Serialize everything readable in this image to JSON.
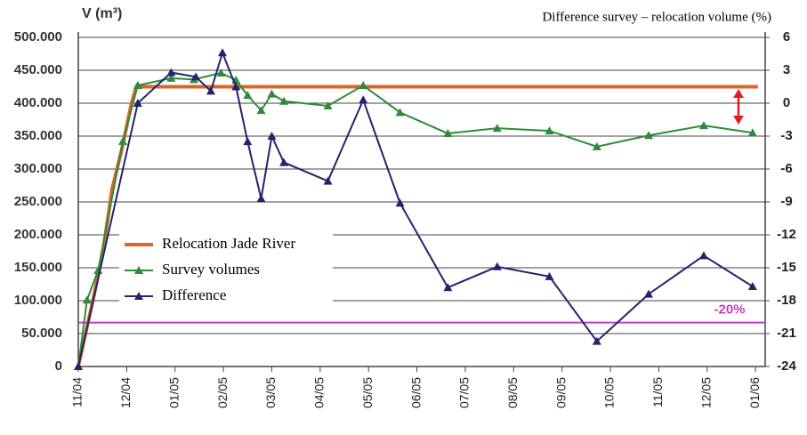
{
  "chart_data": {
    "type": "line",
    "y_label": "V (m³)",
    "y2_label": "Difference  survey  –  relocation volume  (%)",
    "xlim": [
      0,
      14.2
    ],
    "xticks": [
      {
        "value": 0,
        "label": "11/04"
      },
      {
        "value": 1,
        "label": "12/04"
      },
      {
        "value": 2,
        "label": "01/05"
      },
      {
        "value": 3,
        "label": "02/05"
      },
      {
        "value": 4,
        "label": "03/05"
      },
      {
        "value": 5,
        "label": "04/05"
      },
      {
        "value": 6,
        "label": "05/05"
      },
      {
        "value": 7,
        "label": "06/05"
      },
      {
        "value": 8,
        "label": "07/05"
      },
      {
        "value": 9,
        "label": "08/05"
      },
      {
        "value": 10,
        "label": "09/05"
      },
      {
        "value": 11,
        "label": "10/05"
      },
      {
        "value": 12,
        "label": "11/05"
      },
      {
        "value": 13,
        "label": "12/05"
      },
      {
        "value": 14,
        "label": "01/06"
      }
    ],
    "ylim": [
      0,
      500000
    ],
    "yticks": [
      0,
      {
        "value": 50000,
        "label": "50.000"
      },
      {
        "value": 100000,
        "label": "100.000"
      },
      {
        "value": 150000,
        "label": "150.000"
      },
      {
        "value": 200000,
        "label": "200.000"
      },
      {
        "value": 250000,
        "label": "250.000"
      },
      {
        "value": 300000,
        "label": "300.000"
      },
      {
        "value": 350000,
        "label": "350.000"
      },
      {
        "value": 400000,
        "label": "400.000"
      },
      {
        "value": 450000,
        "label": "450.000"
      },
      {
        "value": 500000,
        "label": "500.000"
      }
    ],
    "y2lim": [
      -24,
      6
    ],
    "y2ticks": [
      -24,
      -21,
      -18,
      -15,
      -12,
      -9,
      -6,
      -3,
      0,
      3,
      6
    ],
    "grid": true,
    "legend": "center left",
    "series": [
      {
        "name": "Relocation Jade River",
        "color": "#d9662a",
        "marker": "none",
        "x": [
          0,
          0.3,
          0.5,
          0.7,
          0.9,
          1.1,
          1.2,
          14.05
        ],
        "values": [
          0,
          100000,
          170000,
          270000,
          330000,
          400000,
          425000,
          425000
        ]
      },
      {
        "name": "Survey volumes",
        "color": "#2e8b3a",
        "marker": "triangle",
        "x": [
          0,
          0.18,
          0.41,
          0.92,
          1.23,
          1.92,
          2.39,
          2.95,
          3.26,
          3.5,
          3.78,
          4.0,
          4.25,
          5.16,
          5.89,
          6.65,
          7.64,
          8.66,
          9.74,
          10.72,
          11.79,
          12.93,
          13.94
        ],
        "values": [
          0,
          101000,
          146000,
          342000,
          427000,
          438000,
          436000,
          446000,
          435000,
          412000,
          389000,
          414000,
          403000,
          396000,
          427000,
          386000,
          354000,
          362000,
          358000,
          334000,
          351000,
          366000,
          355000
        ]
      },
      {
        "name": "Difference",
        "color": "#23236e",
        "marker": "triangle",
        "axis": "y2",
        "x": [
          0,
          1.23,
          1.92,
          2.43,
          2.74,
          2.98,
          3.26,
          3.5,
          3.78,
          4.0,
          4.25,
          5.16,
          5.89,
          6.65,
          7.64,
          8.66,
          9.74,
          10.72,
          11.79,
          12.93,
          13.94
        ],
        "values": [
          -24,
          0,
          2.8,
          2.4,
          1.1,
          4.6,
          1.5,
          -3.5,
          -8.7,
          -3.0,
          -5.4,
          -7.1,
          0.3,
          -9.1,
          -16.8,
          -14.9,
          -15.8,
          -21.7,
          -17.4,
          -13.9,
          -16.7
        ]
      }
    ],
    "reference_line": {
      "value": -20,
      "label": "-20%",
      "color": "#c040c0",
      "axis": "y2"
    }
  }
}
